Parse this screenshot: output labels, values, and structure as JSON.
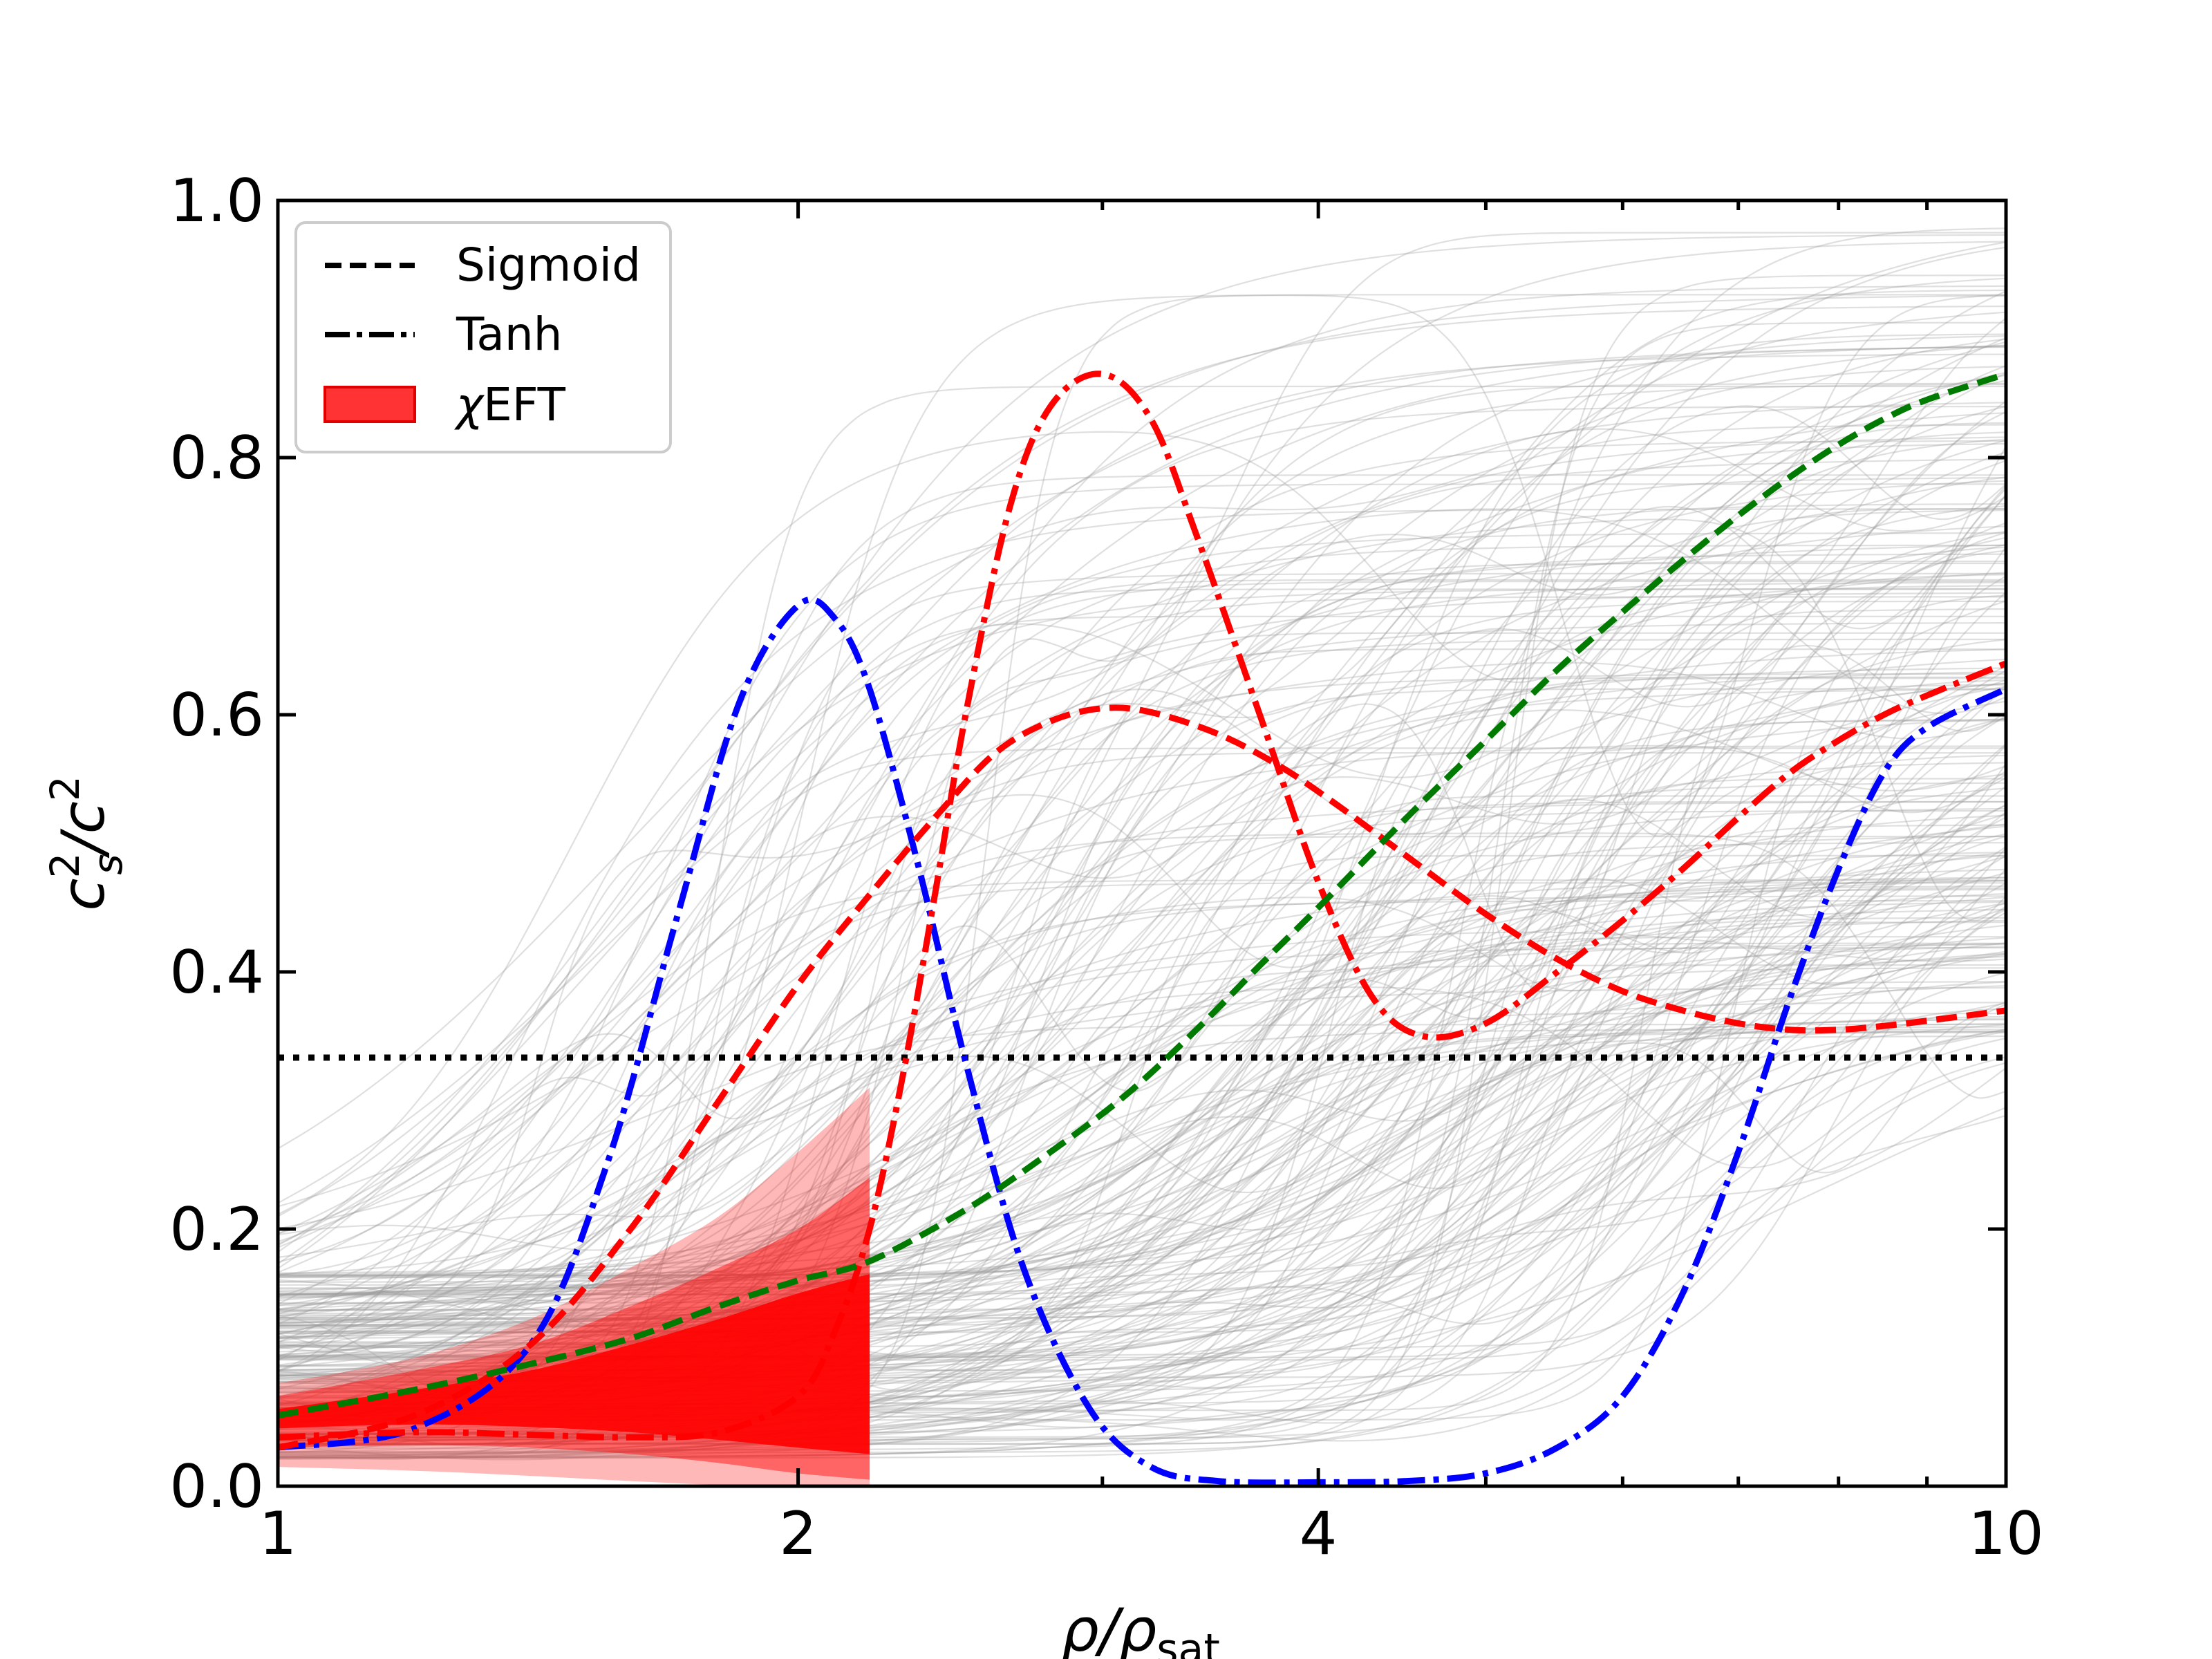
{
  "chart_data": {
    "type": "line",
    "xscale": "log",
    "xlim": [
      1,
      10
    ],
    "ylim": [
      0,
      1.0
    ],
    "x_ticks": [
      1,
      2,
      4,
      10
    ],
    "x_tick_labels": [
      "1",
      "2",
      "4",
      "10"
    ],
    "y_ticks": [
      0.0,
      0.2,
      0.4,
      0.6,
      0.8,
      1.0
    ],
    "y_tick_labels": [
      "0.0",
      "0.2",
      "0.4",
      "0.6",
      "0.8",
      "1.0"
    ],
    "xlabel": {
      "main": "ρ/ρ",
      "sub": "sat"
    },
    "ylabel": {
      "base1": "c",
      "sup1": "2",
      "sub1": "s",
      "slash": "/",
      "base2": "c",
      "sup2": "2"
    },
    "legend": {
      "placement": "upper-left",
      "entries": [
        {
          "label": "Sigmoid",
          "style": "dashed"
        },
        {
          "label": "Tanh",
          "style": "dashdot"
        },
        {
          "label_greek": "χ",
          "label": "EFT",
          "style": "band"
        }
      ]
    },
    "conformal_limit": {
      "y": 0.3333,
      "style": "dotted",
      "color": "#000000"
    },
    "chiEFT_band": {
      "color": "#ff0000",
      "x": [
        1.0,
        1.2,
        1.4,
        1.6,
        1.8,
        2.0,
        2.2
      ],
      "outer_upper": [
        0.08,
        0.1,
        0.13,
        0.17,
        0.21,
        0.26,
        0.31
      ],
      "outer_lower": [
        0.015,
        0.012,
        0.008,
        0.004,
        0.001,
        0.0,
        0.0
      ],
      "mid_upper": [
        0.07,
        0.09,
        0.11,
        0.14,
        0.17,
        0.2,
        0.24
      ],
      "mid_lower": [
        0.03,
        0.032,
        0.03,
        0.025,
        0.018,
        0.01,
        0.005
      ],
      "inner_upper": [
        0.06,
        0.075,
        0.09,
        0.11,
        0.13,
        0.15,
        0.165
      ],
      "inner_lower": [
        0.045,
        0.048,
        0.046,
        0.042,
        0.036,
        0.03,
        0.025
      ]
    },
    "series": [
      {
        "name": "blue-tanh",
        "style": "dashdot",
        "color": "#0000ff",
        "x": [
          1.0,
          1.2,
          1.4,
          1.55,
          1.7,
          1.85,
          2.0,
          2.1,
          2.2,
          2.35,
          2.5,
          2.7,
          2.95,
          3.2,
          3.5,
          4.0,
          4.5,
          5.0,
          5.5,
          6.0,
          6.5,
          7.0,
          7.5,
          8.0,
          8.5,
          9.0,
          10.0
        ],
        "y": [
          0.03,
          0.045,
          0.11,
          0.25,
          0.44,
          0.61,
          0.685,
          0.675,
          0.62,
          0.48,
          0.33,
          0.17,
          0.06,
          0.015,
          0.004,
          0.003,
          0.004,
          0.01,
          0.03,
          0.07,
          0.15,
          0.26,
          0.38,
          0.48,
          0.555,
          0.59,
          0.62
        ]
      },
      {
        "name": "red-tanh",
        "style": "dashdot",
        "color": "#ff0000",
        "x": [
          1.0,
          1.2,
          1.4,
          1.6,
          1.8,
          2.0,
          2.1,
          2.2,
          2.3,
          2.4,
          2.5,
          2.65,
          2.8,
          3.0,
          3.2,
          3.4,
          3.7,
          4.0,
          4.3,
          4.6,
          5.0,
          5.5,
          6.0,
          6.5,
          7.0,
          7.5,
          8.0,
          8.5,
          9.0,
          10.0
        ],
        "y": [
          0.038,
          0.042,
          0.04,
          0.038,
          0.042,
          0.07,
          0.12,
          0.2,
          0.32,
          0.46,
          0.6,
          0.76,
          0.84,
          0.865,
          0.83,
          0.74,
          0.6,
          0.47,
          0.38,
          0.35,
          0.36,
          0.4,
          0.44,
          0.48,
          0.52,
          0.555,
          0.58,
          0.6,
          0.615,
          0.64
        ]
      },
      {
        "name": "red-sigmoid",
        "style": "dashed",
        "color": "#ff0000",
        "x": [
          1.0,
          1.2,
          1.4,
          1.6,
          1.8,
          2.0,
          2.2,
          2.4,
          2.6,
          2.8,
          3.0,
          3.2,
          3.5,
          3.8,
          4.1,
          4.5,
          5.0,
          5.5,
          6.0,
          6.5,
          7.0,
          7.5,
          8.0,
          8.5,
          9.0,
          10.0
        ],
        "y": [
          0.03,
          0.055,
          0.11,
          0.2,
          0.3,
          0.39,
          0.46,
          0.52,
          0.57,
          0.595,
          0.605,
          0.602,
          0.585,
          0.56,
          0.53,
          0.49,
          0.445,
          0.41,
          0.385,
          0.37,
          0.36,
          0.355,
          0.355,
          0.358,
          0.362,
          0.37
        ]
      },
      {
        "name": "green-sigmoid",
        "style": "dashed",
        "color": "#007a00",
        "x": [
          1.0,
          1.2,
          1.4,
          1.6,
          1.8,
          2.0,
          2.2,
          2.5,
          2.8,
          3.1,
          3.4,
          3.7,
          4.0,
          4.5,
          5.0,
          5.5,
          6.0,
          6.5,
          7.0,
          7.5,
          8.0,
          8.5,
          9.0,
          10.0
        ],
        "y": [
          0.055,
          0.075,
          0.095,
          0.115,
          0.14,
          0.16,
          0.175,
          0.215,
          0.26,
          0.305,
          0.355,
          0.405,
          0.45,
          0.52,
          0.58,
          0.635,
          0.68,
          0.72,
          0.755,
          0.785,
          0.81,
          0.83,
          0.845,
          0.865
        ]
      }
    ],
    "background_samples": {
      "description_count": 260,
      "color": "#9a9a9a"
    }
  }
}
